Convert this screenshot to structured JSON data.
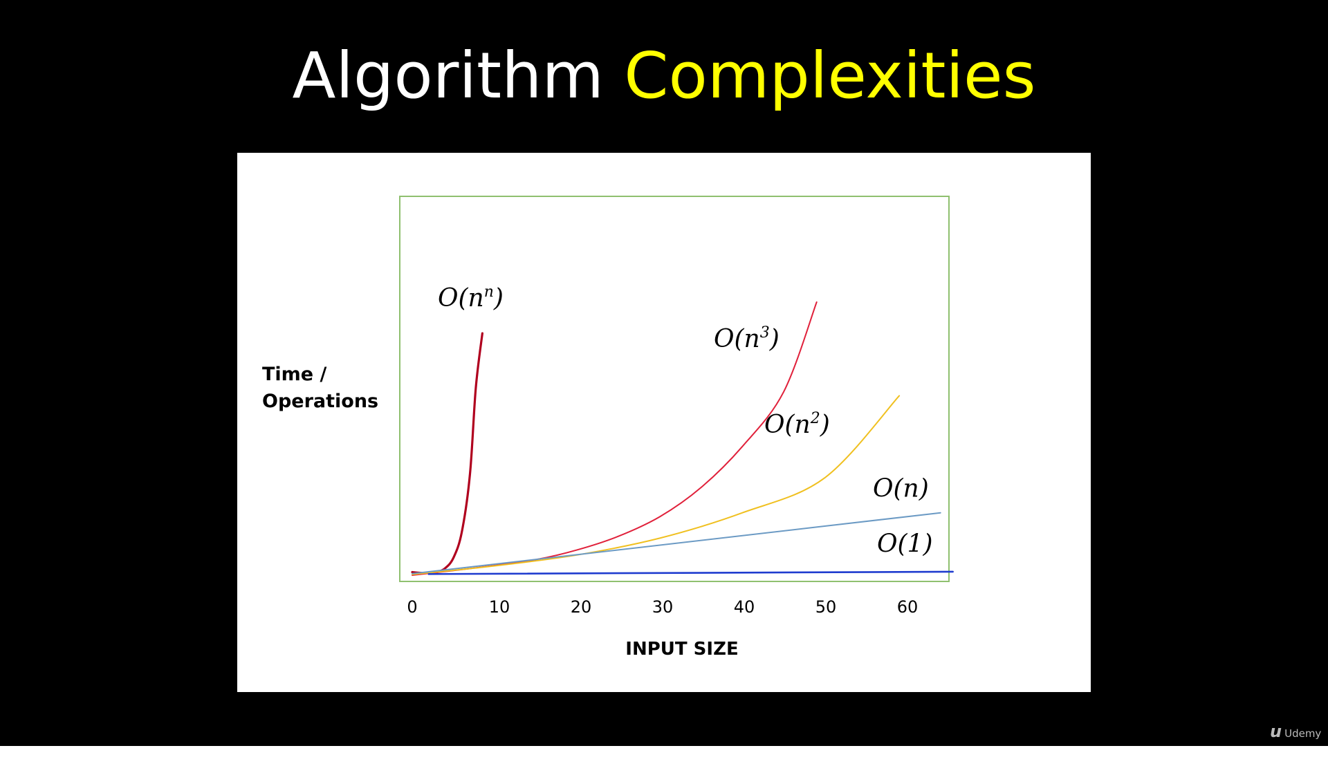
{
  "slide": {
    "title_main": "Algorithm",
    "title_accent": "Complexities",
    "title_accent_color": "#ffff00",
    "background_color": "#000000"
  },
  "brand": {
    "icon": "udemy-logo-icon",
    "text": "Udemy"
  },
  "chart_data": {
    "type": "line",
    "xlabel": "INPUT SIZE",
    "ylabel_lines": [
      "Time /",
      "Operations"
    ],
    "x_ticks": [
      "0",
      "10",
      "20",
      "30",
      "40",
      "50",
      "60"
    ],
    "xlim": [
      -1.5,
      65.5
    ],
    "y_axis_ticks": false,
    "grid": false,
    "legend": "inline labels at curve ends",
    "frame_color": "#8fc06f",
    "series": [
      {
        "name": "O(n^n)",
        "display": {
          "base": "O(n",
          "sup": "n",
          "close": ")"
        },
        "color": "#b0001e",
        "points": [
          [
            0,
            0.8
          ],
          [
            1,
            0.6
          ],
          [
            2,
            0.55
          ],
          [
            3,
            0.8
          ],
          [
            4,
            1.8
          ],
          [
            5,
            4.5
          ],
          [
            6,
            11
          ],
          [
            7,
            26
          ],
          [
            7.7,
            48
          ],
          [
            8.5,
            62
          ]
        ]
      },
      {
        "name": "O(n^3)",
        "display": {
          "base": "O(n",
          "sup": "3",
          "close": ")"
        },
        "color": "#e0203a",
        "points": [
          [
            0,
            0
          ],
          [
            5,
            1.2
          ],
          [
            10,
            2.5
          ],
          [
            15,
            4
          ],
          [
            20,
            6.5
          ],
          [
            25,
            10
          ],
          [
            30,
            15
          ],
          [
            35,
            22.5
          ],
          [
            40,
            33
          ],
          [
            45,
            47
          ],
          [
            49,
            70
          ]
        ]
      },
      {
        "name": "O(n^2)",
        "display": {
          "base": "O(n",
          "sup": "2",
          "close": ")"
        },
        "color": "#f0c020",
        "points": [
          [
            0,
            0.2
          ],
          [
            10,
            2.4
          ],
          [
            20,
            5.2
          ],
          [
            30,
            9.5
          ],
          [
            40,
            16
          ],
          [
            50,
            25
          ],
          [
            59,
            46
          ]
        ]
      },
      {
        "name": "O(n)",
        "display": {
          "base": "O(n)",
          "sup": "",
          "close": ""
        },
        "color": "#6b9ac4",
        "points": [
          [
            0,
            0.4
          ],
          [
            64,
            16
          ]
        ]
      },
      {
        "name": "O(1)",
        "display": {
          "base": "O(1)",
          "sup": "",
          "close": ""
        },
        "color": "#1f3ccf",
        "points": [
          [
            2,
            0.3
          ],
          [
            65.5,
            0.9
          ]
        ]
      }
    ]
  }
}
